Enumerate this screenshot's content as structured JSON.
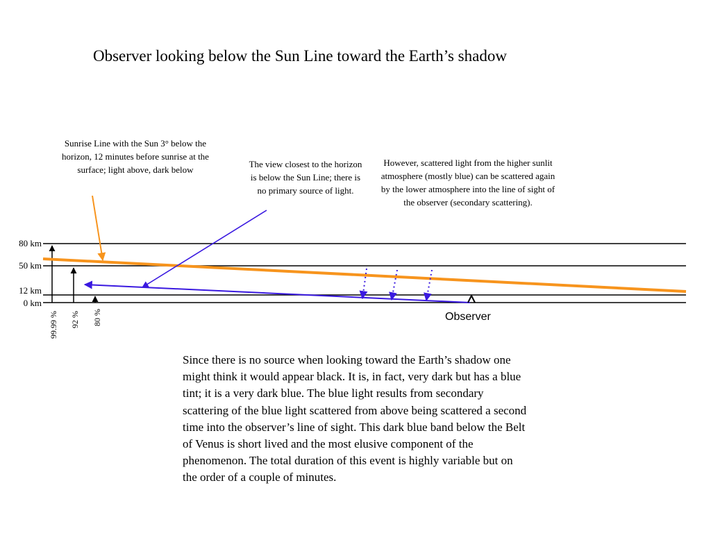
{
  "title": "Observer looking below the Sun Line toward the Earth’s shadow",
  "annotations": {
    "sunrise_line": "Sunrise Line with the Sun 3° below the horizon, 12 minutes before sunrise at the surface;        light above, dark below",
    "closest_view": "The view closest to the horizon is below the Sun Line; there is no primary source of light.",
    "secondary_scattering": "However, scattered light from the higher sunlit atmosphere (mostly blue) can be scattered again by the lower atmosphere into the line of sight of the observer (secondary scattering)."
  },
  "altitudes": [
    "80 km",
    "50 km",
    "12 km",
    "0 km"
  ],
  "percentages": [
    "99.99 %",
    "92 %",
    "80 %"
  ],
  "observer_label": "Observer",
  "explanation": "Since there is no source when looking toward the Earth’s shadow one might think it would appear black. It is, in fact, very dark but has a blue tint; it is a very dark blue. The blue light results from secondary scattering of the blue light scattered from above being scattered a second time into the observer’s line of sight. This dark blue band below the Belt of Venus is short lived and the most elusive component of the phenomenon. The total duration of this event is highly variable but on the order of a couple of minutes.",
  "colors": {
    "sun_line": "#f7941d",
    "sight_line": "#3a19e0",
    "layer_lines": "#000000"
  }
}
